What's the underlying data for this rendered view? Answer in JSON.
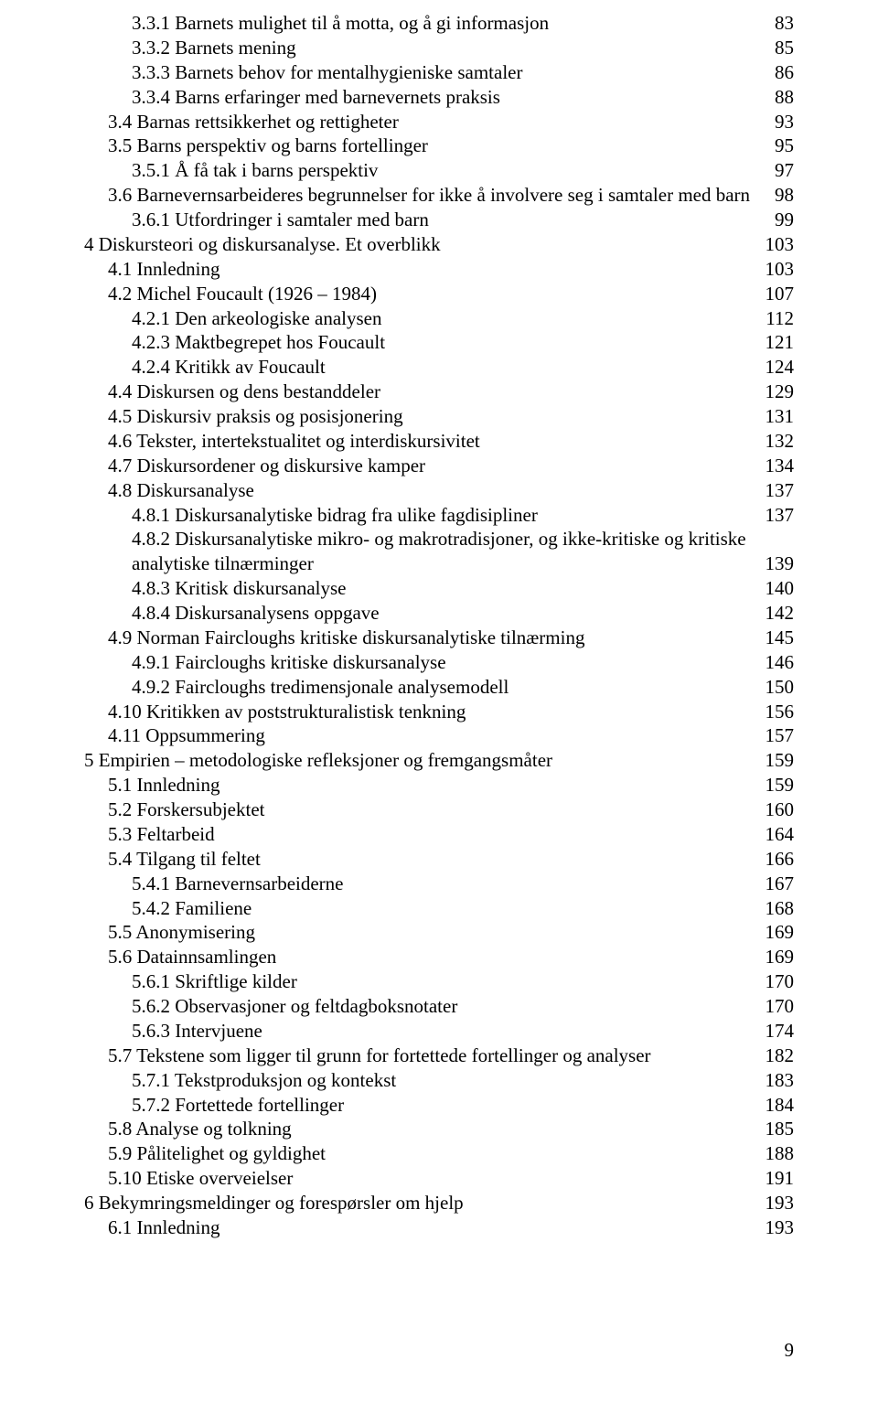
{
  "page_footer_number": "9",
  "style": {
    "font_family": "Times New Roman",
    "font_size_pt": 12,
    "text_color": "#000000",
    "background_color": "#ffffff",
    "dot_leader_color": "#000000"
  },
  "toc": {
    "entries": [
      {
        "indent": 2,
        "label": "3.3.1 Barnets mulighet til å motta, og å gi informasjon",
        "page": "83"
      },
      {
        "indent": 2,
        "label": "3.3.2 Barnets mening",
        "page": "85"
      },
      {
        "indent": 2,
        "label": "3.3.3 Barnets behov for mentalhygieniske samtaler",
        "page": "86"
      },
      {
        "indent": 2,
        "label": "3.3.4 Barns erfaringer med barnevernets praksis",
        "page": "88"
      },
      {
        "indent": 1,
        "label": "3.4 Barnas rettsikkerhet og rettigheter",
        "page": "93"
      },
      {
        "indent": 1,
        "label": "3.5 Barns perspektiv og barns fortellinger",
        "page": "95"
      },
      {
        "indent": 2,
        "label": "3.5.1 Å få tak i barns perspektiv",
        "page": "97"
      },
      {
        "indent": 1,
        "label": "3.6 Barnevernsarbeideres begrunnelser for ikke å involvere seg i samtaler med barn",
        "page": "98"
      },
      {
        "indent": 2,
        "label": "3.6.1 Utfordringer i samtaler med barn",
        "page": "99"
      },
      {
        "indent": 0,
        "label": "4 Diskursteori og diskursanalyse. Et overblikk",
        "page": "103"
      },
      {
        "indent": 1,
        "label": "4.1 Innledning",
        "page": "103"
      },
      {
        "indent": 1,
        "label": "4.2 Michel Foucault (1926 – 1984)",
        "page": "107"
      },
      {
        "indent": 2,
        "label": "4.2.1 Den arkeologiske analysen",
        "page": "112"
      },
      {
        "indent": 2,
        "label": "4.2.3 Maktbegrepet hos Foucault",
        "page": "121"
      },
      {
        "indent": 2,
        "label": "4.2.4 Kritikk av Foucault",
        "page": "124"
      },
      {
        "indent": 1,
        "label": "4.4 Diskursen og dens bestanddeler",
        "page": "129"
      },
      {
        "indent": 1,
        "label": "4.5 Diskursiv praksis og posisjonering",
        "page": "131"
      },
      {
        "indent": 1,
        "label": "4.6 Tekster, intertekstualitet og interdiskursivitet",
        "page": "132"
      },
      {
        "indent": 1,
        "label": "4.7 Diskursordener og diskursive kamper",
        "page": "134"
      },
      {
        "indent": 1,
        "label": "4.8 Diskursanalyse",
        "page": "137"
      },
      {
        "indent": 2,
        "label": "4.8.1 Diskursanalytiske bidrag fra ulike fagdisipliner",
        "page": "137"
      },
      {
        "indent": 2,
        "label": "4.8.2 Diskursanalytiske mikro- og makrotradisjoner, og ikke-kritiske og kritiske analytiske tilnærminger",
        "page": "139"
      },
      {
        "indent": 2,
        "label": "4.8.3 Kritisk diskursanalyse",
        "page": "140"
      },
      {
        "indent": 2,
        "label": "4.8.4 Diskursanalysens oppgave",
        "page": "142"
      },
      {
        "indent": 1,
        "label": "4.9 Norman Faircloughs kritiske diskursanalytiske tilnærming",
        "page": "145"
      },
      {
        "indent": 2,
        "label": "4.9.1 Faircloughs kritiske diskursanalyse",
        "page": "146"
      },
      {
        "indent": 2,
        "label": "4.9.2 Faircloughs tredimensjonale analysemodell",
        "page": "150"
      },
      {
        "indent": 1,
        "label": "4.10 Kritikken av poststrukturalistisk tenkning",
        "page": "156"
      },
      {
        "indent": 1,
        "label": "4.11 Oppsummering",
        "page": "157"
      },
      {
        "indent": 0,
        "label": "5 Empirien – metodologiske refleksjoner og fremgangsmåter",
        "page": "159"
      },
      {
        "indent": 1,
        "label": "5.1 Innledning",
        "page": "159"
      },
      {
        "indent": 1,
        "label": "5.2 Forskersubjektet",
        "page": "160"
      },
      {
        "indent": 1,
        "label": "5.3 Feltarbeid",
        "page": "164"
      },
      {
        "indent": 1,
        "label": "5.4 Tilgang til feltet",
        "page": "166"
      },
      {
        "indent": 2,
        "label": "5.4.1 Barnevernsarbeiderne",
        "page": "167"
      },
      {
        "indent": 2,
        "label": "5.4.2 Familiene",
        "page": "168"
      },
      {
        "indent": 1,
        "label": "5.5 Anonymisering",
        "page": "169"
      },
      {
        "indent": 1,
        "label": "5.6 Datainnsamlingen",
        "page": "169"
      },
      {
        "indent": 2,
        "label": "5.6.1 Skriftlige kilder",
        "page": "170"
      },
      {
        "indent": 2,
        "label": "5.6.2 Observasjoner og feltdagboksnotater",
        "page": "170"
      },
      {
        "indent": 2,
        "label": "5.6.3 Intervjuene",
        "page": "174"
      },
      {
        "indent": 1,
        "label": "5.7 Tekstene som ligger til grunn for fortettede fortellinger og analyser",
        "page": "182"
      },
      {
        "indent": 2,
        "label": "5.7.1 Tekstproduksjon og kontekst",
        "page": "183"
      },
      {
        "indent": 2,
        "label": "5.7.2 Fortettede fortellinger",
        "page": "184"
      },
      {
        "indent": 1,
        "label": "5.8 Analyse og tolkning",
        "page": "185"
      },
      {
        "indent": 1,
        "label": "5.9 Pålitelighet og gyldighet",
        "page": "188"
      },
      {
        "indent": 1,
        "label": "5.10 Etiske overveielser",
        "page": "191"
      },
      {
        "indent": 0,
        "label": "6 Bekymringsmeldinger og forespørsler om hjelp",
        "page": "193"
      },
      {
        "indent": 1,
        "label": "6.1 Innledning",
        "page": "193"
      }
    ]
  }
}
